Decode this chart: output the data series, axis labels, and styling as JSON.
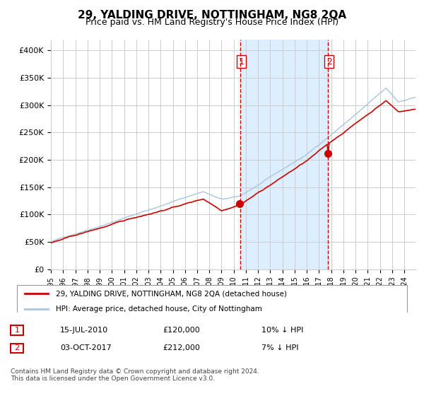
{
  "title": "29, YALDING DRIVE, NOTTINGHAM, NG8 2QA",
  "subtitle": "Price paid vs. HM Land Registry's House Price Index (HPI)",
  "legend_line1": "29, YALDING DRIVE, NOTTINGHAM, NG8 2QA (detached house)",
  "legend_line2": "HPI: Average price, detached house, City of Nottingham",
  "transaction1_date": "15-JUL-2010",
  "transaction1_price": 120000,
  "transaction1_note": "10% ↓ HPI",
  "transaction2_date": "03-OCT-2017",
  "transaction2_price": 212000,
  "transaction2_note": "7% ↓ HPI",
  "footnote": "Contains HM Land Registry data © Crown copyright and database right 2024.\nThis data is licensed under the Open Government Licence v3.0.",
  "hpi_color": "#aac4e0",
  "property_color": "#cc0000",
  "marker_color": "#cc0000",
  "vline_color": "#cc0000",
  "shade_color": "#ddeeff",
  "grid_color": "#cccccc",
  "background_color": "#ffffff",
  "ylim": [
    0,
    420000
  ],
  "yticks": [
    0,
    50000,
    100000,
    150000,
    200000,
    250000,
    300000,
    350000,
    400000
  ]
}
